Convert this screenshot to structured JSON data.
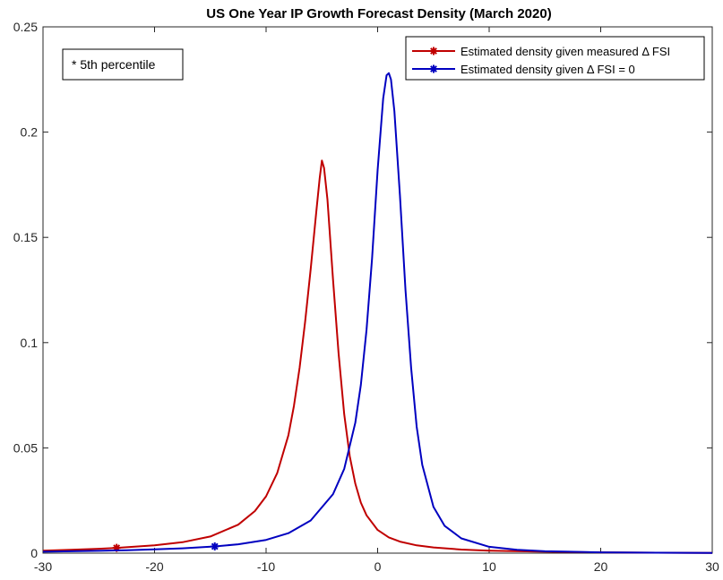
{
  "chart_data": {
    "type": "line",
    "title": "US One Year IP Growth Forecast Density (March 2020)",
    "xlabel": "",
    "ylabel": "",
    "xlim": [
      -30,
      30
    ],
    "ylim": [
      0,
      0.25
    ],
    "xticks": [
      -30,
      -20,
      -10,
      0,
      10,
      20,
      30
    ],
    "yticks": [
      0,
      0.05,
      0.1,
      0.15,
      0.2,
      0.25
    ],
    "grid": false,
    "legend_position": "top-right",
    "annotation": "* 5th percentile",
    "series": [
      {
        "name": "Estimated density given measured Δ FSI",
        "color": "#c00000",
        "x": [
          -30,
          -27.5,
          -25,
          -23.4,
          -20,
          -17.5,
          -15,
          -12.5,
          -11,
          -10,
          -9,
          -8,
          -7.5,
          -7,
          -6.5,
          -6,
          -5.5,
          -5.2,
          -5,
          -4.8,
          -4.5,
          -4,
          -3.5,
          -3,
          -2.5,
          -2,
          -1.5,
          -1,
          0,
          1,
          2,
          3.5,
          5,
          7.5,
          10,
          15,
          20,
          25,
          30
        ],
        "y": [
          0.0012,
          0.0016,
          0.0021,
          0.0025,
          0.0037,
          0.0052,
          0.0079,
          0.0135,
          0.02,
          0.027,
          0.038,
          0.056,
          0.07,
          0.088,
          0.11,
          0.135,
          0.162,
          0.178,
          0.1865,
          0.183,
          0.168,
          0.13,
          0.095,
          0.066,
          0.046,
          0.033,
          0.024,
          0.018,
          0.011,
          0.0075,
          0.0055,
          0.0037,
          0.0027,
          0.0017,
          0.0012,
          0.0007,
          0.0004,
          0.0002,
          0.0001
        ],
        "marker_5th_percentile": {
          "x": -23.4,
          "y": 0.0025
        }
      },
      {
        "name": "Estimated density given Δ FSI = 0",
        "color": "#0000c0",
        "x": [
          -30,
          -27.5,
          -25,
          -22.5,
          -20,
          -17.5,
          -14.6,
          -12.5,
          -10,
          -8,
          -6,
          -4,
          -3,
          -2,
          -1.5,
          -1,
          -0.5,
          0,
          0.5,
          0.8,
          1,
          1.2,
          1.5,
          2,
          2.5,
          3,
          3.5,
          4,
          5,
          6,
          7.5,
          10,
          12.5,
          15,
          20,
          25,
          30
        ],
        "y": [
          0.0007,
          0.0009,
          0.0011,
          0.0014,
          0.0018,
          0.0023,
          0.0032,
          0.0042,
          0.0063,
          0.0095,
          0.0155,
          0.028,
          0.04,
          0.062,
          0.08,
          0.106,
          0.14,
          0.182,
          0.216,
          0.227,
          0.228,
          0.225,
          0.21,
          0.17,
          0.125,
          0.088,
          0.06,
          0.042,
          0.022,
          0.013,
          0.007,
          0.003,
          0.0016,
          0.0009,
          0.0004,
          0.0002,
          0.0001
        ],
        "marker_5th_percentile": {
          "x": -14.6,
          "y": 0.0032
        }
      }
    ]
  }
}
